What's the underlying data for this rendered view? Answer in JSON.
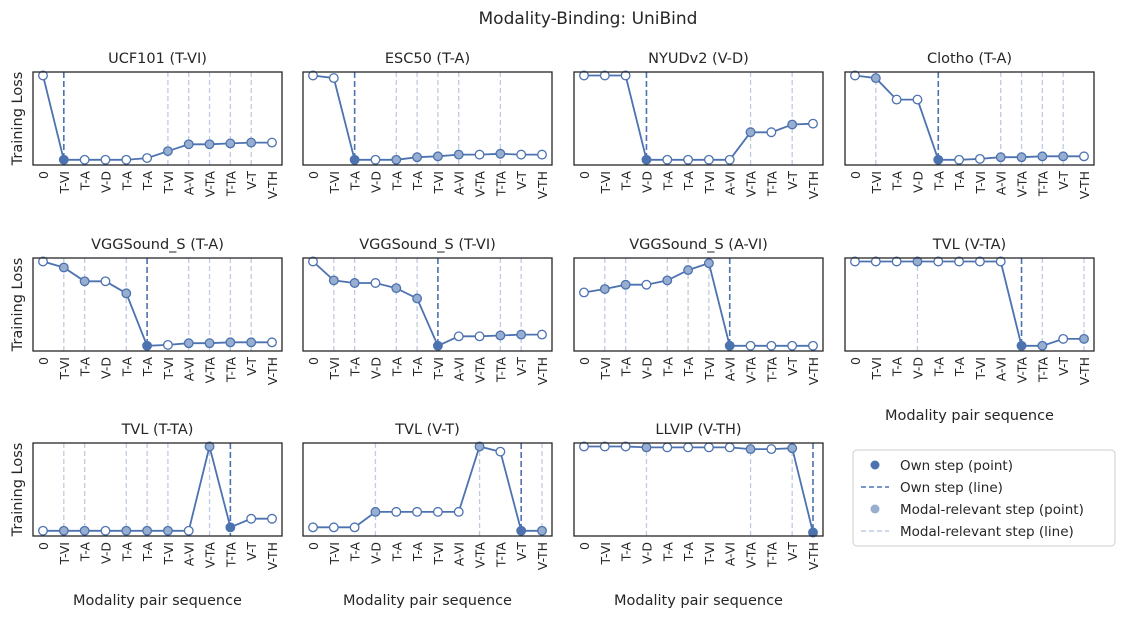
{
  "figure": {
    "title": "Modality-Binding: UniBind",
    "ylabel": "Training Loss",
    "xlabel": "Modality pair sequence"
  },
  "colors": {
    "line": "#4c72b0",
    "own_point": "#4c72b0",
    "relevant_point": "#97aed0",
    "empty_point_fill": "#ffffff",
    "relevant_line": "#bfcbe0",
    "frame": "#262626"
  },
  "legend": {
    "placement": "bottom-right",
    "items": [
      {
        "label": "Own step (point)",
        "kind": "own-point"
      },
      {
        "label": "Own step (line)",
        "kind": "own-line"
      },
      {
        "label": "Modal-relevant step (point)",
        "kind": "relevant-point"
      },
      {
        "label": "Modal-relevant step (line)",
        "kind": "relevant-line"
      }
    ]
  },
  "chart_data": [
    {
      "type": "line",
      "title": "UCF101 (T-VI)",
      "categories": [
        "0",
        "T-VI",
        "T-A",
        "V-D",
        "T-A",
        "T-A",
        "T-VI",
        "A-VI",
        "V-TA",
        "T-TA",
        "V-T",
        "V-TH"
      ],
      "values": [
        1.0,
        0.02,
        0.02,
        0.02,
        0.02,
        0.04,
        0.12,
        0.2,
        0.2,
        0.21,
        0.22,
        0.22
      ],
      "own_step": 1,
      "relevant_steps": [
        6,
        7,
        8,
        9,
        10
      ]
    },
    {
      "type": "line",
      "title": "ESC50 (T-A)",
      "categories": [
        "0",
        "T-VI",
        "T-A",
        "V-D",
        "T-A",
        "T-A",
        "T-VI",
        "A-VI",
        "V-TA",
        "T-TA",
        "V-T",
        "V-TH"
      ],
      "values": [
        1.0,
        0.97,
        0.02,
        0.02,
        0.02,
        0.05,
        0.06,
        0.08,
        0.08,
        0.09,
        0.08,
        0.08
      ],
      "own_step": 2,
      "relevant_steps": [
        4,
        5,
        6,
        7,
        9
      ]
    },
    {
      "type": "line",
      "title": "NYUDv2 (V-D)",
      "categories": [
        "0",
        "T-VI",
        "T-A",
        "V-D",
        "T-A",
        "T-A",
        "T-VI",
        "A-VI",
        "V-TA",
        "T-TA",
        "V-T",
        "V-TH"
      ],
      "values": [
        1.0,
        1.0,
        1.0,
        0.02,
        0.02,
        0.02,
        0.02,
        0.02,
        0.34,
        0.34,
        0.43,
        0.44
      ],
      "own_step": 3,
      "relevant_steps": [
        8,
        10
      ]
    },
    {
      "type": "line",
      "title": "Clotho (T-A)",
      "categories": [
        "0",
        "T-VI",
        "T-A",
        "V-D",
        "T-A",
        "T-A",
        "T-VI",
        "A-VI",
        "V-TA",
        "T-TA",
        "V-T",
        "V-TH"
      ],
      "values": [
        1.0,
        0.97,
        0.72,
        0.72,
        0.02,
        0.02,
        0.03,
        0.05,
        0.05,
        0.06,
        0.06,
        0.06
      ],
      "own_step": 4,
      "relevant_steps": [
        1,
        7,
        8,
        9,
        10
      ]
    },
    {
      "type": "line",
      "title": "VGGSound_S (T-A)",
      "categories": [
        "0",
        "T-VI",
        "T-A",
        "V-D",
        "T-A",
        "T-A",
        "T-VI",
        "A-VI",
        "V-TA",
        "T-TA",
        "V-T",
        "V-TH"
      ],
      "values": [
        1.0,
        0.93,
        0.77,
        0.77,
        0.63,
        0.02,
        0.03,
        0.05,
        0.05,
        0.06,
        0.06,
        0.06
      ],
      "own_step": 5,
      "relevant_steps": [
        1,
        2,
        4,
        7,
        8,
        9,
        10
      ]
    },
    {
      "type": "line",
      "title": "VGGSound_S (T-VI)",
      "categories": [
        "0",
        "T-VI",
        "T-A",
        "V-D",
        "T-A",
        "T-A",
        "T-VI",
        "A-VI",
        "V-TA",
        "T-TA",
        "V-T",
        "V-TH"
      ],
      "values": [
        1.0,
        0.78,
        0.75,
        0.75,
        0.69,
        0.57,
        0.02,
        0.13,
        0.13,
        0.14,
        0.15,
        0.15
      ],
      "own_step": 6,
      "relevant_steps": [
        1,
        2,
        4,
        5,
        9,
        10
      ]
    },
    {
      "type": "line",
      "title": "VGGSound_S (A-VI)",
      "categories": [
        "0",
        "T-VI",
        "T-A",
        "V-D",
        "T-A",
        "T-A",
        "T-VI",
        "A-VI",
        "V-TA",
        "T-TA",
        "V-T",
        "V-TH"
      ],
      "values": [
        0.64,
        0.68,
        0.73,
        0.73,
        0.78,
        0.9,
        0.98,
        0.02,
        0.02,
        0.02,
        0.02,
        0.02
      ],
      "own_step": 7,
      "relevant_steps": [
        1,
        2,
        4,
        5,
        6
      ]
    },
    {
      "type": "line",
      "title": "TVL (V-TA)",
      "categories": [
        "0",
        "T-VI",
        "T-A",
        "V-D",
        "T-A",
        "T-A",
        "T-VI",
        "A-VI",
        "V-TA",
        "T-TA",
        "V-T",
        "V-TH"
      ],
      "values": [
        1.0,
        1.0,
        1.0,
        1.0,
        1.0,
        1.0,
        1.0,
        1.0,
        0.02,
        0.02,
        0.1,
        0.1
      ],
      "own_step": 8,
      "relevant_steps": [
        3,
        9,
        11
      ]
    },
    {
      "type": "line",
      "title": "TVL (T-TA)",
      "categories": [
        "0",
        "T-VI",
        "T-A",
        "V-D",
        "T-A",
        "T-A",
        "T-VI",
        "A-VI",
        "V-TA",
        "T-TA",
        "V-T",
        "V-TH"
      ],
      "values": [
        0.02,
        0.02,
        0.02,
        0.02,
        0.02,
        0.02,
        0.02,
        0.02,
        1.0,
        0.06,
        0.16,
        0.16
      ],
      "own_step": 9,
      "relevant_steps": [
        1,
        2,
        4,
        5,
        6,
        8
      ]
    },
    {
      "type": "line",
      "title": "TVL (V-T)",
      "categories": [
        "0",
        "T-VI",
        "T-A",
        "V-D",
        "T-A",
        "T-A",
        "T-VI",
        "A-VI",
        "V-TA",
        "T-TA",
        "V-T",
        "V-TH"
      ],
      "values": [
        0.06,
        0.06,
        0.06,
        0.24,
        0.24,
        0.24,
        0.24,
        0.24,
        1.0,
        0.94,
        0.02,
        0.02
      ],
      "own_step": 10,
      "relevant_steps": [
        3,
        8,
        11
      ]
    },
    {
      "type": "line",
      "title": "LLVIP (V-TH)",
      "categories": [
        "0",
        "T-VI",
        "T-A",
        "V-D",
        "T-A",
        "T-A",
        "T-VI",
        "A-VI",
        "V-TA",
        "T-TA",
        "V-T",
        "V-TH"
      ],
      "values": [
        1.0,
        1.0,
        1.0,
        0.99,
        0.99,
        0.99,
        0.99,
        0.99,
        0.97,
        0.97,
        0.98,
        0.0
      ],
      "own_step": 11,
      "relevant_steps": [
        3,
        8,
        10
      ]
    }
  ]
}
